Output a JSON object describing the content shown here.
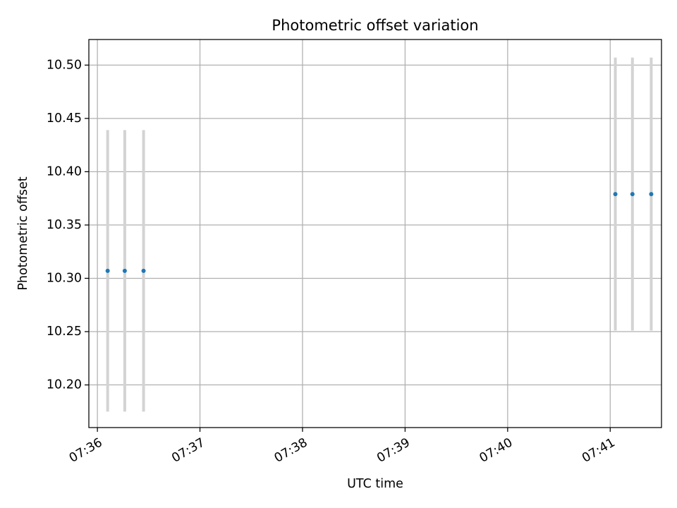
{
  "chart_data": {
    "type": "scatter",
    "title": "Photometric offset variation",
    "xlabel": "UTC time",
    "ylabel": "Photometric offset",
    "x_ticks": [
      "07:36",
      "07:37",
      "07:38",
      "07:39",
      "07:40",
      "07:41"
    ],
    "y_ticks": [
      "10.20",
      "10.25",
      "10.30",
      "10.35",
      "10.40",
      "10.45",
      "10.50"
    ],
    "xlim": [
      "07:35:55",
      "07:41:30"
    ],
    "ylim": [
      10.16,
      10.524
    ],
    "grid": true,
    "errorbar_color": "#d3d3d3",
    "series": [
      {
        "color": "#1f77b4",
        "points": [
          {
            "x": "07:36:06",
            "y": 10.307,
            "err_low": 10.175,
            "err_high": 10.439
          },
          {
            "x": "07:36:16",
            "y": 10.307,
            "err_low": 10.175,
            "err_high": 10.439
          },
          {
            "x": "07:36:27",
            "y": 10.307,
            "err_low": 10.175,
            "err_high": 10.439
          },
          {
            "x": "07:41:03",
            "y": 10.379,
            "err_low": 10.251,
            "err_high": 10.507
          },
          {
            "x": "07:41:13",
            "y": 10.379,
            "err_low": 10.251,
            "err_high": 10.507
          },
          {
            "x": "07:41:24",
            "y": 10.379,
            "err_low": 10.251,
            "err_high": 10.507
          }
        ]
      }
    ]
  }
}
